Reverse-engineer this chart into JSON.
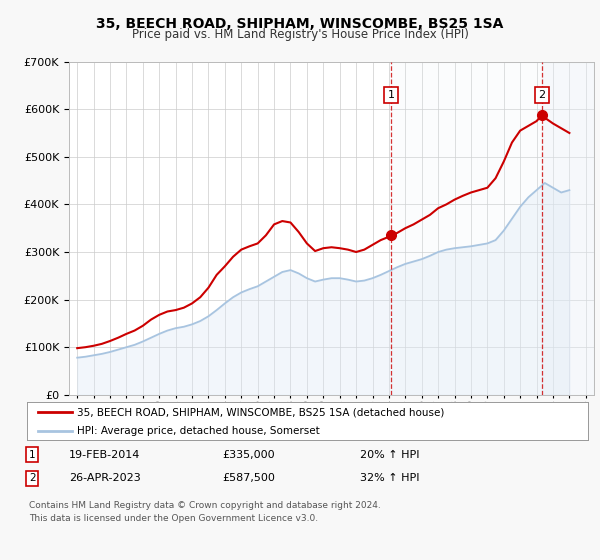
{
  "title": "35, BEECH ROAD, SHIPHAM, WINSCOMBE, BS25 1SA",
  "subtitle": "Price paid vs. HM Land Registry's House Price Index (HPI)",
  "legend_line1": "35, BEECH ROAD, SHIPHAM, WINSCOMBE, BS25 1SA (detached house)",
  "legend_line2": "HPI: Average price, detached house, Somerset",
  "footnote1": "Contains HM Land Registry data © Crown copyright and database right 2024.",
  "footnote2": "This data is licensed under the Open Government Licence v3.0.",
  "transaction1_date": "19-FEB-2014",
  "transaction1_price": "£335,000",
  "transaction1_hpi": "20% ↑ HPI",
  "transaction1_year": 2014.12,
  "transaction1_value": 335000,
  "transaction2_date": "26-APR-2023",
  "transaction2_price": "£587,500",
  "transaction2_hpi": "32% ↑ HPI",
  "transaction2_year": 2023.32,
  "transaction2_value": 587500,
  "hpi_color": "#a8c4e0",
  "hpi_fill_color": "#dce8f5",
  "price_color": "#cc0000",
  "vline_color": "#cc0000",
  "shade_color": "#e8f0f8",
  "background_color": "#f5f5f5",
  "plot_bg_color": "#ffffff",
  "ylim": [
    0,
    700000
  ],
  "xlim_start": 1994.5,
  "xlim_end": 2026.5,
  "years_hpi": [
    1995,
    1995.5,
    1996,
    1996.5,
    1997,
    1997.5,
    1998,
    1998.5,
    1999,
    1999.5,
    2000,
    2000.5,
    2001,
    2001.5,
    2002,
    2002.5,
    2003,
    2003.5,
    2004,
    2004.5,
    2005,
    2005.5,
    2006,
    2006.5,
    2007,
    2007.5,
    2008,
    2008.5,
    2009,
    2009.5,
    2010,
    2010.5,
    2011,
    2011.5,
    2012,
    2012.5,
    2013,
    2013.5,
    2014,
    2014.5,
    2015,
    2015.5,
    2016,
    2016.5,
    2017,
    2017.5,
    2018,
    2018.5,
    2019,
    2019.5,
    2020,
    2020.5,
    2021,
    2021.5,
    2022,
    2022.5,
    2023,
    2023.5,
    2024,
    2024.5,
    2025
  ],
  "values_hpi": [
    78000,
    80000,
    83000,
    86000,
    90000,
    95000,
    100000,
    105000,
    112000,
    120000,
    128000,
    135000,
    140000,
    143000,
    148000,
    155000,
    165000,
    178000,
    192000,
    205000,
    215000,
    222000,
    228000,
    238000,
    248000,
    258000,
    262000,
    255000,
    245000,
    238000,
    242000,
    245000,
    245000,
    242000,
    238000,
    240000,
    245000,
    252000,
    260000,
    268000,
    275000,
    280000,
    285000,
    292000,
    300000,
    305000,
    308000,
    310000,
    312000,
    315000,
    318000,
    325000,
    345000,
    370000,
    395000,
    415000,
    430000,
    445000,
    435000,
    425000,
    430000
  ],
  "years_price": [
    1995,
    1995.5,
    1996,
    1996.5,
    1997,
    1997.5,
    1998,
    1998.5,
    1999,
    1999.5,
    2000,
    2000.5,
    2001,
    2001.5,
    2002,
    2002.5,
    2003,
    2003.5,
    2004,
    2004.5,
    2005,
    2005.5,
    2006,
    2006.5,
    2007,
    2007.5,
    2008,
    2008.5,
    2009,
    2009.5,
    2010,
    2010.5,
    2011,
    2011.5,
    2012,
    2012.5,
    2013,
    2013.5,
    2014,
    2014.12,
    2014.5,
    2015,
    2015.5,
    2016,
    2016.5,
    2017,
    2017.5,
    2018,
    2018.5,
    2019,
    2019.5,
    2020,
    2020.5,
    2021,
    2021.5,
    2022,
    2022.5,
    2023,
    2023.32,
    2023.5,
    2024,
    2024.5,
    2025
  ],
  "values_price": [
    98000,
    100000,
    103000,
    107000,
    113000,
    120000,
    128000,
    135000,
    145000,
    158000,
    168000,
    175000,
    178000,
    183000,
    192000,
    205000,
    225000,
    252000,
    270000,
    290000,
    305000,
    312000,
    318000,
    335000,
    358000,
    365000,
    362000,
    342000,
    318000,
    302000,
    308000,
    310000,
    308000,
    305000,
    300000,
    305000,
    315000,
    325000,
    332000,
    335000,
    340000,
    350000,
    358000,
    368000,
    378000,
    392000,
    400000,
    410000,
    418000,
    425000,
    430000,
    435000,
    455000,
    490000,
    530000,
    555000,
    565000,
    575000,
    587500,
    582000,
    570000,
    560000,
    550000
  ]
}
